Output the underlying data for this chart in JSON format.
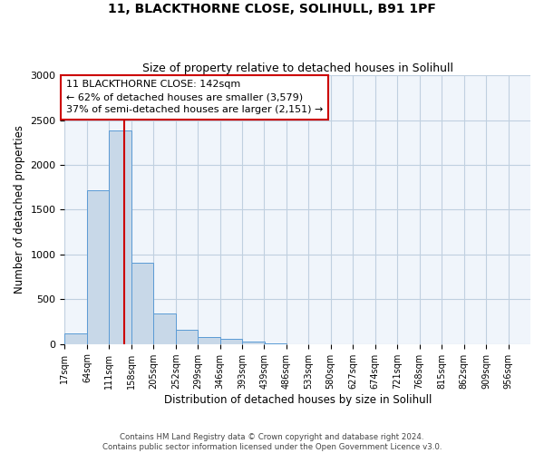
{
  "title_line1": "11, BLACKTHORNE CLOSE, SOLIHULL, B91 1PF",
  "title_line2": "Size of property relative to detached houses in Solihull",
  "xlabel": "Distribution of detached houses by size in Solihull",
  "ylabel": "Number of detached properties",
  "bar_color": "#c8d8e8",
  "bar_edge_color": "#5b9bd5",
  "bar_values": [
    120,
    1720,
    2380,
    910,
    340,
    155,
    80,
    55,
    30,
    5,
    0,
    0,
    0,
    0,
    0,
    0,
    0,
    0,
    0,
    0
  ],
  "bin_labels": [
    "17sqm",
    "64sqm",
    "111sqm",
    "158sqm",
    "205sqm",
    "252sqm",
    "299sqm",
    "346sqm",
    "393sqm",
    "439sqm",
    "486sqm",
    "533sqm",
    "580sqm",
    "627sqm",
    "674sqm",
    "721sqm",
    "768sqm",
    "815sqm",
    "862sqm",
    "909sqm",
    "956sqm"
  ],
  "bin_edges": [
    17,
    64,
    111,
    158,
    205,
    252,
    299,
    346,
    393,
    439,
    486,
    533,
    580,
    627,
    674,
    721,
    768,
    815,
    862,
    909,
    956
  ],
  "vline_x": 142,
  "vline_color": "#cc0000",
  "annotation_text": "11 BLACKTHORNE CLOSE: 142sqm\n← 62% of detached houses are smaller (3,579)\n37% of semi-detached houses are larger (2,151) →",
  "annotation_box_color": "#ffffff",
  "annotation_box_edge": "#cc0000",
  "ylim": [
    0,
    3000
  ],
  "yticks": [
    0,
    500,
    1000,
    1500,
    2000,
    2500,
    3000
  ],
  "footer_line1": "Contains HM Land Registry data © Crown copyright and database right 2024.",
  "footer_line2": "Contains public sector information licensed under the Open Government Licence v3.0.",
  "grid_color": "#c0d0e0",
  "bg_color": "#f0f5fb"
}
